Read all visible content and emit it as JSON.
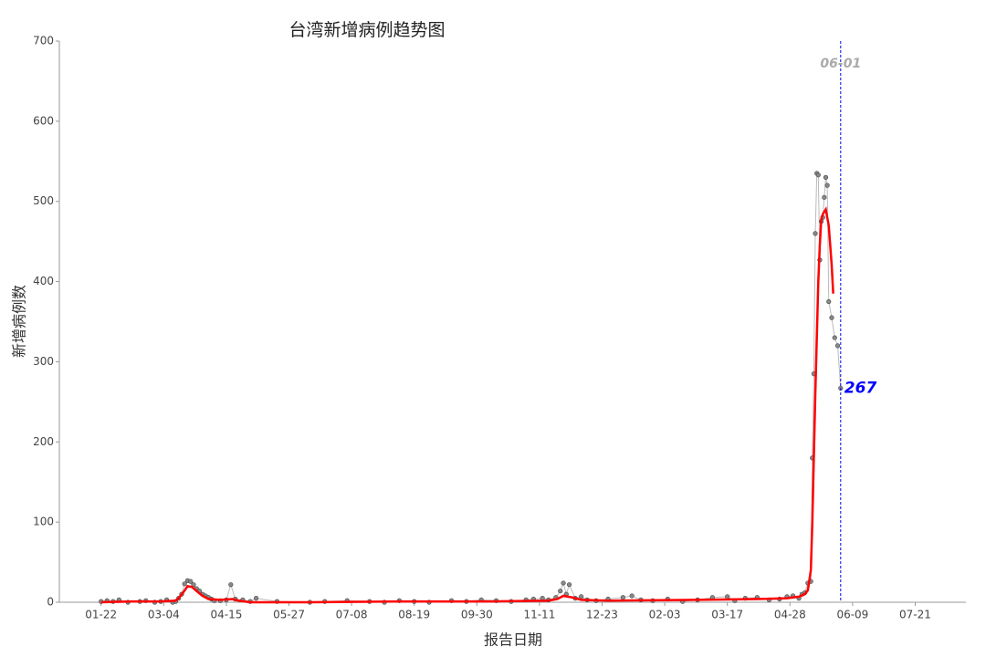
{
  "chart_data": {
    "type": "line",
    "title": "台湾新增病例趋势图",
    "x_label": "报告日期",
    "y_label": "新增病例数",
    "xlim": [
      -28,
      580
    ],
    "ylim": [
      0,
      700
    ],
    "xticks": [
      {
        "value": 0,
        "label": "01-22"
      },
      {
        "value": 42,
        "label": "03-04"
      },
      {
        "value": 84,
        "label": "04-15"
      },
      {
        "value": 126,
        "label": "05-27"
      },
      {
        "value": 168,
        "label": "07-08"
      },
      {
        "value": 210,
        "label": "08-19"
      },
      {
        "value": 252,
        "label": "09-30"
      },
      {
        "value": 294,
        "label": "11-11"
      },
      {
        "value": 336,
        "label": "12-23"
      },
      {
        "value": 378,
        "label": "02-03"
      },
      {
        "value": 420,
        "label": "03-17"
      },
      {
        "value": 462,
        "label": "04-28"
      },
      {
        "value": 504,
        "label": "06-09"
      },
      {
        "value": 546,
        "label": "07-21"
      }
    ],
    "yticks": [
      0,
      100,
      200,
      300,
      400,
      500,
      600,
      700
    ],
    "annotations": [
      {
        "x": 496,
        "label": "06-01",
        "color": "#0000ff"
      }
    ],
    "series": [
      {
        "color": "#888888",
        "markers": true,
        "x": [
          0,
          4,
          8,
          12,
          18,
          26,
          30,
          36,
          40,
          44,
          48,
          50,
          52,
          54,
          56,
          58,
          60,
          62,
          64,
          66,
          68,
          70,
          72,
          74,
          76,
          80,
          84,
          87,
          90,
          95,
          100,
          104,
          118,
          140,
          150,
          165,
          180,
          190,
          200,
          210,
          220,
          235,
          245,
          255,
          265,
          275,
          285,
          290,
          296,
          300,
          305,
          308,
          310,
          312,
          314,
          318,
          322,
          326,
          332,
          340,
          350,
          356,
          362,
          370,
          380,
          390,
          400,
          410,
          420,
          425,
          432,
          440,
          448,
          455,
          460,
          464,
          468,
          470,
          472,
          474,
          476,
          477,
          478,
          479,
          480,
          481,
          482,
          483,
          484,
          485,
          486,
          487,
          488,
          490,
          492,
          494,
          496
        ],
        "values": [
          1,
          2,
          1,
          3,
          0,
          1,
          2,
          0,
          1,
          3,
          0,
          1,
          5,
          10,
          23,
          27,
          26,
          22,
          17,
          14,
          10,
          8,
          6,
          4,
          2,
          2,
          3,
          22,
          4,
          3,
          1,
          5,
          1,
          0,
          1,
          2,
          1,
          0,
          2,
          1,
          0,
          2,
          1,
          3,
          2,
          1,
          3,
          4,
          5,
          3,
          6,
          14,
          24,
          10,
          22,
          5,
          7,
          3,
          2,
          4,
          6,
          8,
          3,
          2,
          4,
          1,
          3,
          6,
          7,
          2,
          5,
          6,
          3,
          4,
          7,
          8,
          5,
          10,
          12,
          24,
          26,
          180,
          285,
          460,
          535,
          533,
          427,
          475,
          480,
          505,
          530,
          520,
          375,
          355,
          330,
          320,
          267
        ]
      },
      {
        "color": "#ff0000",
        "x": [
          0,
          20,
          40,
          50,
          52,
          55,
          58,
          61,
          64,
          68,
          72,
          80,
          88,
          92,
          100,
          140,
          200,
          260,
          300,
          306,
          310,
          316,
          322,
          340,
          400,
          440,
          460,
          468,
          472,
          474,
          476,
          477,
          478,
          479,
          480,
          481,
          482,
          483,
          484,
          486,
          488,
          490,
          491
        ],
        "values": [
          0,
          1,
          1,
          2,
          5,
          12,
          20,
          19,
          14,
          8,
          4,
          3,
          4,
          2,
          0,
          0,
          1,
          1,
          2,
          4,
          8,
          6,
          3,
          2,
          3,
          4,
          5,
          7,
          10,
          15,
          40,
          100,
          180,
          260,
          330,
          400,
          445,
          478,
          484,
          490,
          470,
          420,
          385
        ]
      }
    ]
  }
}
